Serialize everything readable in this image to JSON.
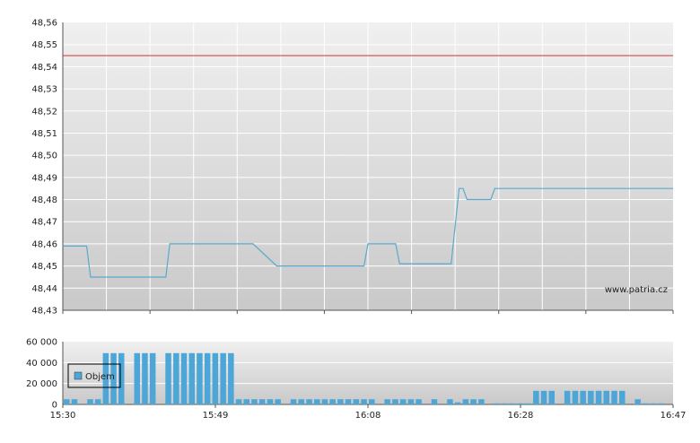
{
  "colors": {
    "series": "#5ba9cf",
    "volume": "#4ca6d8",
    "reference": "#cc3333",
    "grid": "#ffffff",
    "plot_top": "#f0f0f0",
    "plot_bottom": "#c9c9c9",
    "axis": "#555555"
  },
  "watermark": "www.patria.cz",
  "chart_data": [
    {
      "type": "line",
      "title": "",
      "xlabel": "",
      "ylabel": "",
      "ylim": [
        48.43,
        48.56
      ],
      "y_ticks": [
        "48,56",
        "48,55",
        "48,54",
        "48,53",
        "48,52",
        "48,51",
        "48,50",
        "48,49",
        "48,48",
        "48,47",
        "48,46",
        "48,45",
        "48,44",
        "48,43"
      ],
      "x_ticks": [
        "15:30",
        "15:49",
        "16:08",
        "16:28",
        "16:47"
      ],
      "grid": true,
      "reference_line": 48.545,
      "series": [
        {
          "x": [
            "15:30",
            "15:33",
            "15:33.5",
            "15:43",
            "15:43.5",
            "15:53",
            "15:54",
            "15:57",
            "16:08",
            "16:08.5",
            "16:12",
            "16:12.5",
            "16:19",
            "16:20",
            "16:20.5",
            "16:21",
            "16:24",
            "16:24.5",
            "16:47"
          ],
          "values": [
            48.459,
            48.459,
            48.445,
            48.445,
            48.46,
            48.46,
            48.46,
            48.45,
            48.45,
            48.46,
            48.46,
            48.451,
            48.451,
            48.485,
            48.485,
            48.48,
            48.48,
            48.485,
            48.485
          ]
        }
      ]
    },
    {
      "type": "bar",
      "title": "",
      "xlabel": "",
      "ylabel": "",
      "ylim": [
        0,
        60000
      ],
      "y_ticks": [
        "60 000",
        "40 000",
        "20 000",
        "0"
      ],
      "x_ticks": [
        "15:30",
        "15:49",
        "16:08",
        "16:28",
        "16:47"
      ],
      "grid": true,
      "legend": {
        "label": "Objem",
        "placement": "top-left"
      },
      "minutes": [
        0,
        1,
        2,
        3,
        4,
        5,
        6,
        7,
        8,
        9,
        10,
        11,
        12,
        13,
        14,
        15,
        16,
        17,
        18,
        19,
        20,
        21,
        22,
        23,
        24,
        25,
        26,
        27,
        28,
        29,
        30,
        31,
        32,
        33,
        34,
        35,
        36,
        37,
        38,
        39,
        40,
        41,
        42,
        43,
        44,
        45,
        46,
        47,
        48,
        49,
        50,
        51,
        52,
        53,
        54,
        55,
        56,
        57,
        58,
        59,
        60,
        61,
        62,
        63,
        64,
        65,
        66,
        67,
        68,
        69,
        70,
        71,
        72,
        73,
        74,
        75,
        76,
        77
      ],
      "values": [
        5000,
        5000,
        0,
        5000,
        5000,
        49000,
        49000,
        49000,
        0,
        49000,
        49000,
        49000,
        0,
        49000,
        49000,
        49000,
        49000,
        49000,
        49000,
        49000,
        49000,
        49000,
        5000,
        5000,
        5000,
        5000,
        5000,
        5000,
        0,
        5000,
        5000,
        5000,
        5000,
        5000,
        5000,
        5000,
        5000,
        5000,
        5000,
        5000,
        0,
        5000,
        5000,
        5000,
        5000,
        5000,
        0,
        5000,
        0,
        5000,
        2000,
        5000,
        5000,
        5000,
        0,
        1000,
        1000,
        1000,
        1000,
        1000,
        13000,
        13000,
        13000,
        0,
        13000,
        13000,
        13000,
        13000,
        13000,
        13000,
        13000,
        13000,
        0,
        5000,
        1000,
        1000,
        1000,
        0
      ]
    }
  ]
}
